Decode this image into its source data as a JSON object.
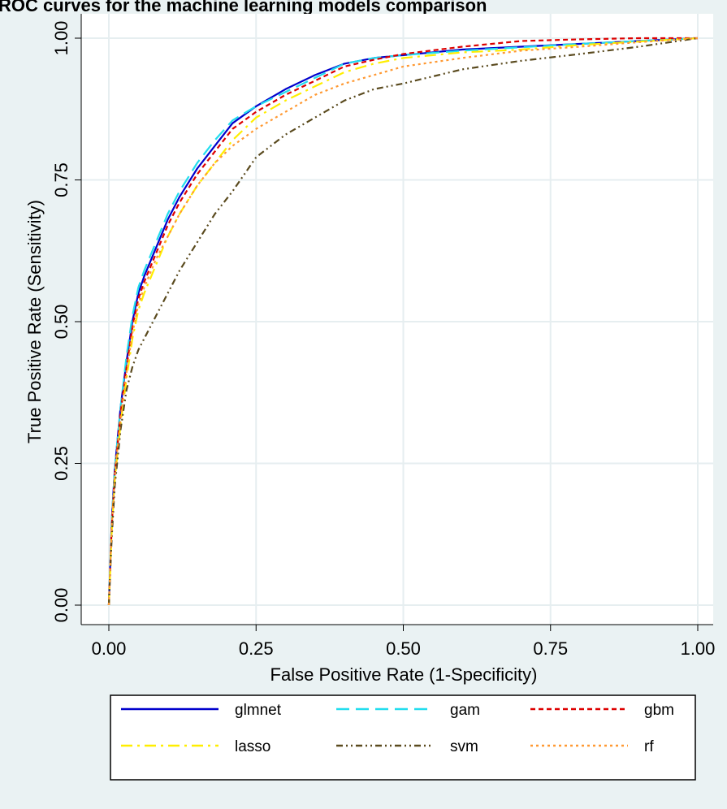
{
  "chart_data": {
    "type": "line",
    "title": "ROC curves for the machine learning models comparison",
    "xlabel": "False Positive Rate (1-Specificity)",
    "ylabel": "True Positive Rate (Sensitivity)",
    "xlim": [
      0,
      1
    ],
    "ylim": [
      0,
      1
    ],
    "xticks": [
      "0.00",
      "0.25",
      "0.50",
      "0.75",
      "1.00"
    ],
    "yticks": [
      "0.00",
      "0.25",
      "0.50",
      "0.75",
      "1.00"
    ],
    "grid": true,
    "legend_position": "bottom",
    "series": [
      {
        "name": "glmnet",
        "color": "#0000cc",
        "dash": "solid",
        "x": [
          0,
          0.005,
          0.01,
          0.02,
          0.03,
          0.04,
          0.05,
          0.06,
          0.08,
          0.1,
          0.12,
          0.15,
          0.18,
          0.21,
          0.25,
          0.3,
          0.35,
          0.4,
          0.45,
          0.5,
          0.6,
          0.7,
          0.8,
          0.9,
          1.0
        ],
        "y": [
          0,
          0.15,
          0.24,
          0.35,
          0.43,
          0.5,
          0.55,
          0.58,
          0.63,
          0.68,
          0.72,
          0.77,
          0.81,
          0.85,
          0.88,
          0.91,
          0.935,
          0.955,
          0.965,
          0.97,
          0.98,
          0.985,
          0.99,
          0.995,
          1.0
        ]
      },
      {
        "name": "gam",
        "color": "#22ddee",
        "dash": "longdash",
        "x": [
          0,
          0.005,
          0.01,
          0.02,
          0.03,
          0.04,
          0.05,
          0.06,
          0.08,
          0.1,
          0.12,
          0.15,
          0.18,
          0.21,
          0.25,
          0.3,
          0.35,
          0.4,
          0.45,
          0.5,
          0.6,
          0.7,
          0.8,
          0.9,
          1.0
        ],
        "y": [
          0,
          0.15,
          0.24,
          0.35,
          0.44,
          0.51,
          0.56,
          0.59,
          0.64,
          0.69,
          0.73,
          0.78,
          0.82,
          0.855,
          0.88,
          0.905,
          0.93,
          0.955,
          0.965,
          0.97,
          0.978,
          0.984,
          0.99,
          0.995,
          1.0
        ]
      },
      {
        "name": "gbm",
        "color": "#dd0000",
        "dash": "shortdash",
        "x": [
          0,
          0.005,
          0.01,
          0.02,
          0.03,
          0.04,
          0.05,
          0.06,
          0.08,
          0.1,
          0.12,
          0.15,
          0.18,
          0.21,
          0.25,
          0.3,
          0.35,
          0.4,
          0.45,
          0.5,
          0.6,
          0.7,
          0.8,
          0.9,
          1.0
        ],
        "y": [
          0,
          0.14,
          0.23,
          0.34,
          0.42,
          0.49,
          0.54,
          0.57,
          0.62,
          0.67,
          0.71,
          0.76,
          0.8,
          0.84,
          0.87,
          0.9,
          0.925,
          0.95,
          0.962,
          0.972,
          0.985,
          0.995,
          0.998,
          1.0,
          1.0
        ]
      },
      {
        "name": "lasso",
        "color": "#ffee00",
        "dash": "longdashdot",
        "x": [
          0,
          0.005,
          0.01,
          0.02,
          0.03,
          0.04,
          0.05,
          0.06,
          0.08,
          0.1,
          0.12,
          0.15,
          0.18,
          0.21,
          0.25,
          0.3,
          0.35,
          0.4,
          0.45,
          0.5,
          0.6,
          0.7,
          0.8,
          0.9,
          1.0
        ],
        "y": [
          0,
          0.13,
          0.22,
          0.32,
          0.4,
          0.47,
          0.52,
          0.55,
          0.6,
          0.65,
          0.69,
          0.74,
          0.78,
          0.82,
          0.86,
          0.89,
          0.915,
          0.94,
          0.955,
          0.965,
          0.975,
          0.98,
          0.988,
          0.994,
          1.0
        ]
      },
      {
        "name": "svm",
        "color": "#5a4a1e",
        "dash": "dashdotdot",
        "x": [
          0,
          0.005,
          0.01,
          0.02,
          0.03,
          0.04,
          0.05,
          0.06,
          0.08,
          0.1,
          0.12,
          0.15,
          0.18,
          0.21,
          0.25,
          0.3,
          0.35,
          0.4,
          0.45,
          0.5,
          0.6,
          0.7,
          0.8,
          0.9,
          1.0
        ],
        "y": [
          0,
          0.12,
          0.21,
          0.31,
          0.38,
          0.42,
          0.45,
          0.47,
          0.51,
          0.55,
          0.59,
          0.64,
          0.69,
          0.73,
          0.79,
          0.83,
          0.86,
          0.89,
          0.91,
          0.92,
          0.945,
          0.96,
          0.972,
          0.985,
          1.0
        ]
      },
      {
        "name": "rf",
        "color": "#ff9933",
        "dash": "dotted",
        "x": [
          0,
          0.005,
          0.01,
          0.02,
          0.03,
          0.04,
          0.05,
          0.06,
          0.08,
          0.1,
          0.12,
          0.15,
          0.18,
          0.21,
          0.25,
          0.3,
          0.35,
          0.4,
          0.45,
          0.5,
          0.6,
          0.7,
          0.8,
          0.9,
          1.0
        ],
        "y": [
          0,
          0.14,
          0.23,
          0.33,
          0.41,
          0.48,
          0.53,
          0.56,
          0.61,
          0.65,
          0.69,
          0.74,
          0.78,
          0.81,
          0.84,
          0.87,
          0.9,
          0.92,
          0.935,
          0.95,
          0.965,
          0.978,
          0.985,
          0.993,
          1.0
        ]
      }
    ]
  }
}
